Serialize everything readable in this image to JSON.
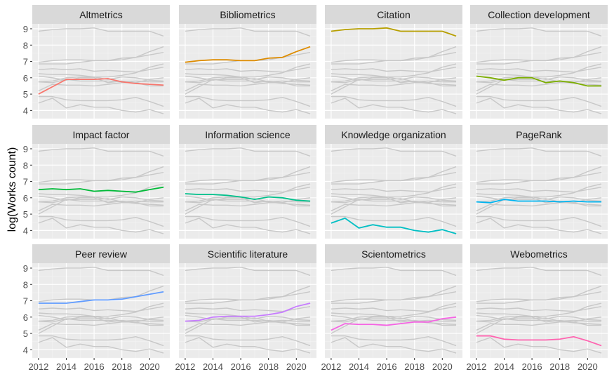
{
  "chart_data": {
    "type": "line",
    "facets": "small multiples, 3 rows x 4 columns",
    "ylabel": "log(Works count)",
    "xlabel": "",
    "x": [
      2012,
      2013,
      2014,
      2015,
      2016,
      2017,
      2018,
      2019,
      2020,
      2021
    ],
    "xticks": [
      2012,
      2014,
      2016,
      2018,
      2020
    ],
    "yticks": [
      4,
      5,
      6,
      7,
      8,
      9
    ],
    "xlim": [
      2011.55,
      2021.45
    ],
    "ylim": [
      3.5,
      9.3
    ],
    "grid": true,
    "background_series_color": "#c8c8c8",
    "series": [
      {
        "name": "Altmetrics",
        "color": "#F8766D",
        "values": [
          5.0,
          5.45,
          5.9,
          5.9,
          5.9,
          5.95,
          5.75,
          5.65,
          5.6,
          5.55
        ]
      },
      {
        "name": "Bibliometrics",
        "color": "#DE8C00",
        "values": [
          6.95,
          7.05,
          7.1,
          7.1,
          7.05,
          7.05,
          7.2,
          7.25,
          7.6,
          7.9
        ]
      },
      {
        "name": "Citation",
        "color": "#B79F00",
        "values": [
          8.85,
          8.95,
          9.0,
          9.0,
          9.05,
          8.85,
          8.85,
          8.85,
          8.85,
          8.55
        ]
      },
      {
        "name": "Collection development",
        "color": "#7CAE00",
        "values": [
          6.1,
          6.0,
          5.85,
          6.0,
          6.0,
          5.7,
          5.8,
          5.7,
          5.5,
          5.5
        ]
      },
      {
        "name": "Impact factor",
        "color": "#00BA38",
        "values": [
          6.5,
          6.55,
          6.5,
          6.55,
          6.4,
          6.45,
          6.4,
          6.35,
          6.5,
          6.65
        ]
      },
      {
        "name": "Information science",
        "color": "#00C08B",
        "values": [
          6.25,
          6.2,
          6.2,
          6.15,
          6.05,
          5.9,
          6.05,
          6.0,
          5.85,
          5.8
        ]
      },
      {
        "name": "Knowledge organization",
        "color": "#00BFC4",
        "values": [
          4.45,
          4.75,
          4.15,
          4.35,
          4.2,
          4.2,
          4.0,
          3.9,
          4.05,
          3.8
        ]
      },
      {
        "name": "PageRank",
        "color": "#00B4F0",
        "values": [
          5.75,
          5.7,
          5.9,
          5.8,
          5.8,
          5.8,
          5.75,
          5.8,
          5.75,
          5.75
        ]
      },
      {
        "name": "Peer review",
        "color": "#619CFF",
        "values": [
          6.85,
          6.85,
          6.85,
          6.95,
          7.05,
          7.05,
          7.1,
          7.25,
          7.4,
          7.55
        ]
      },
      {
        "name": "Scientific literature",
        "color": "#C77CFF",
        "values": [
          5.75,
          5.8,
          6.0,
          6.05,
          6.05,
          6.05,
          6.15,
          6.3,
          6.65,
          6.85
        ]
      },
      {
        "name": "Scientometrics",
        "color": "#F564E3",
        "values": [
          5.2,
          5.6,
          5.55,
          5.55,
          5.5,
          5.6,
          5.7,
          5.7,
          5.9,
          6.0
        ]
      },
      {
        "name": "Webometrics",
        "color": "#FF64B0",
        "values": [
          4.85,
          4.85,
          4.65,
          4.6,
          4.6,
          4.6,
          4.65,
          4.8,
          4.55,
          4.25
        ]
      }
    ]
  }
}
